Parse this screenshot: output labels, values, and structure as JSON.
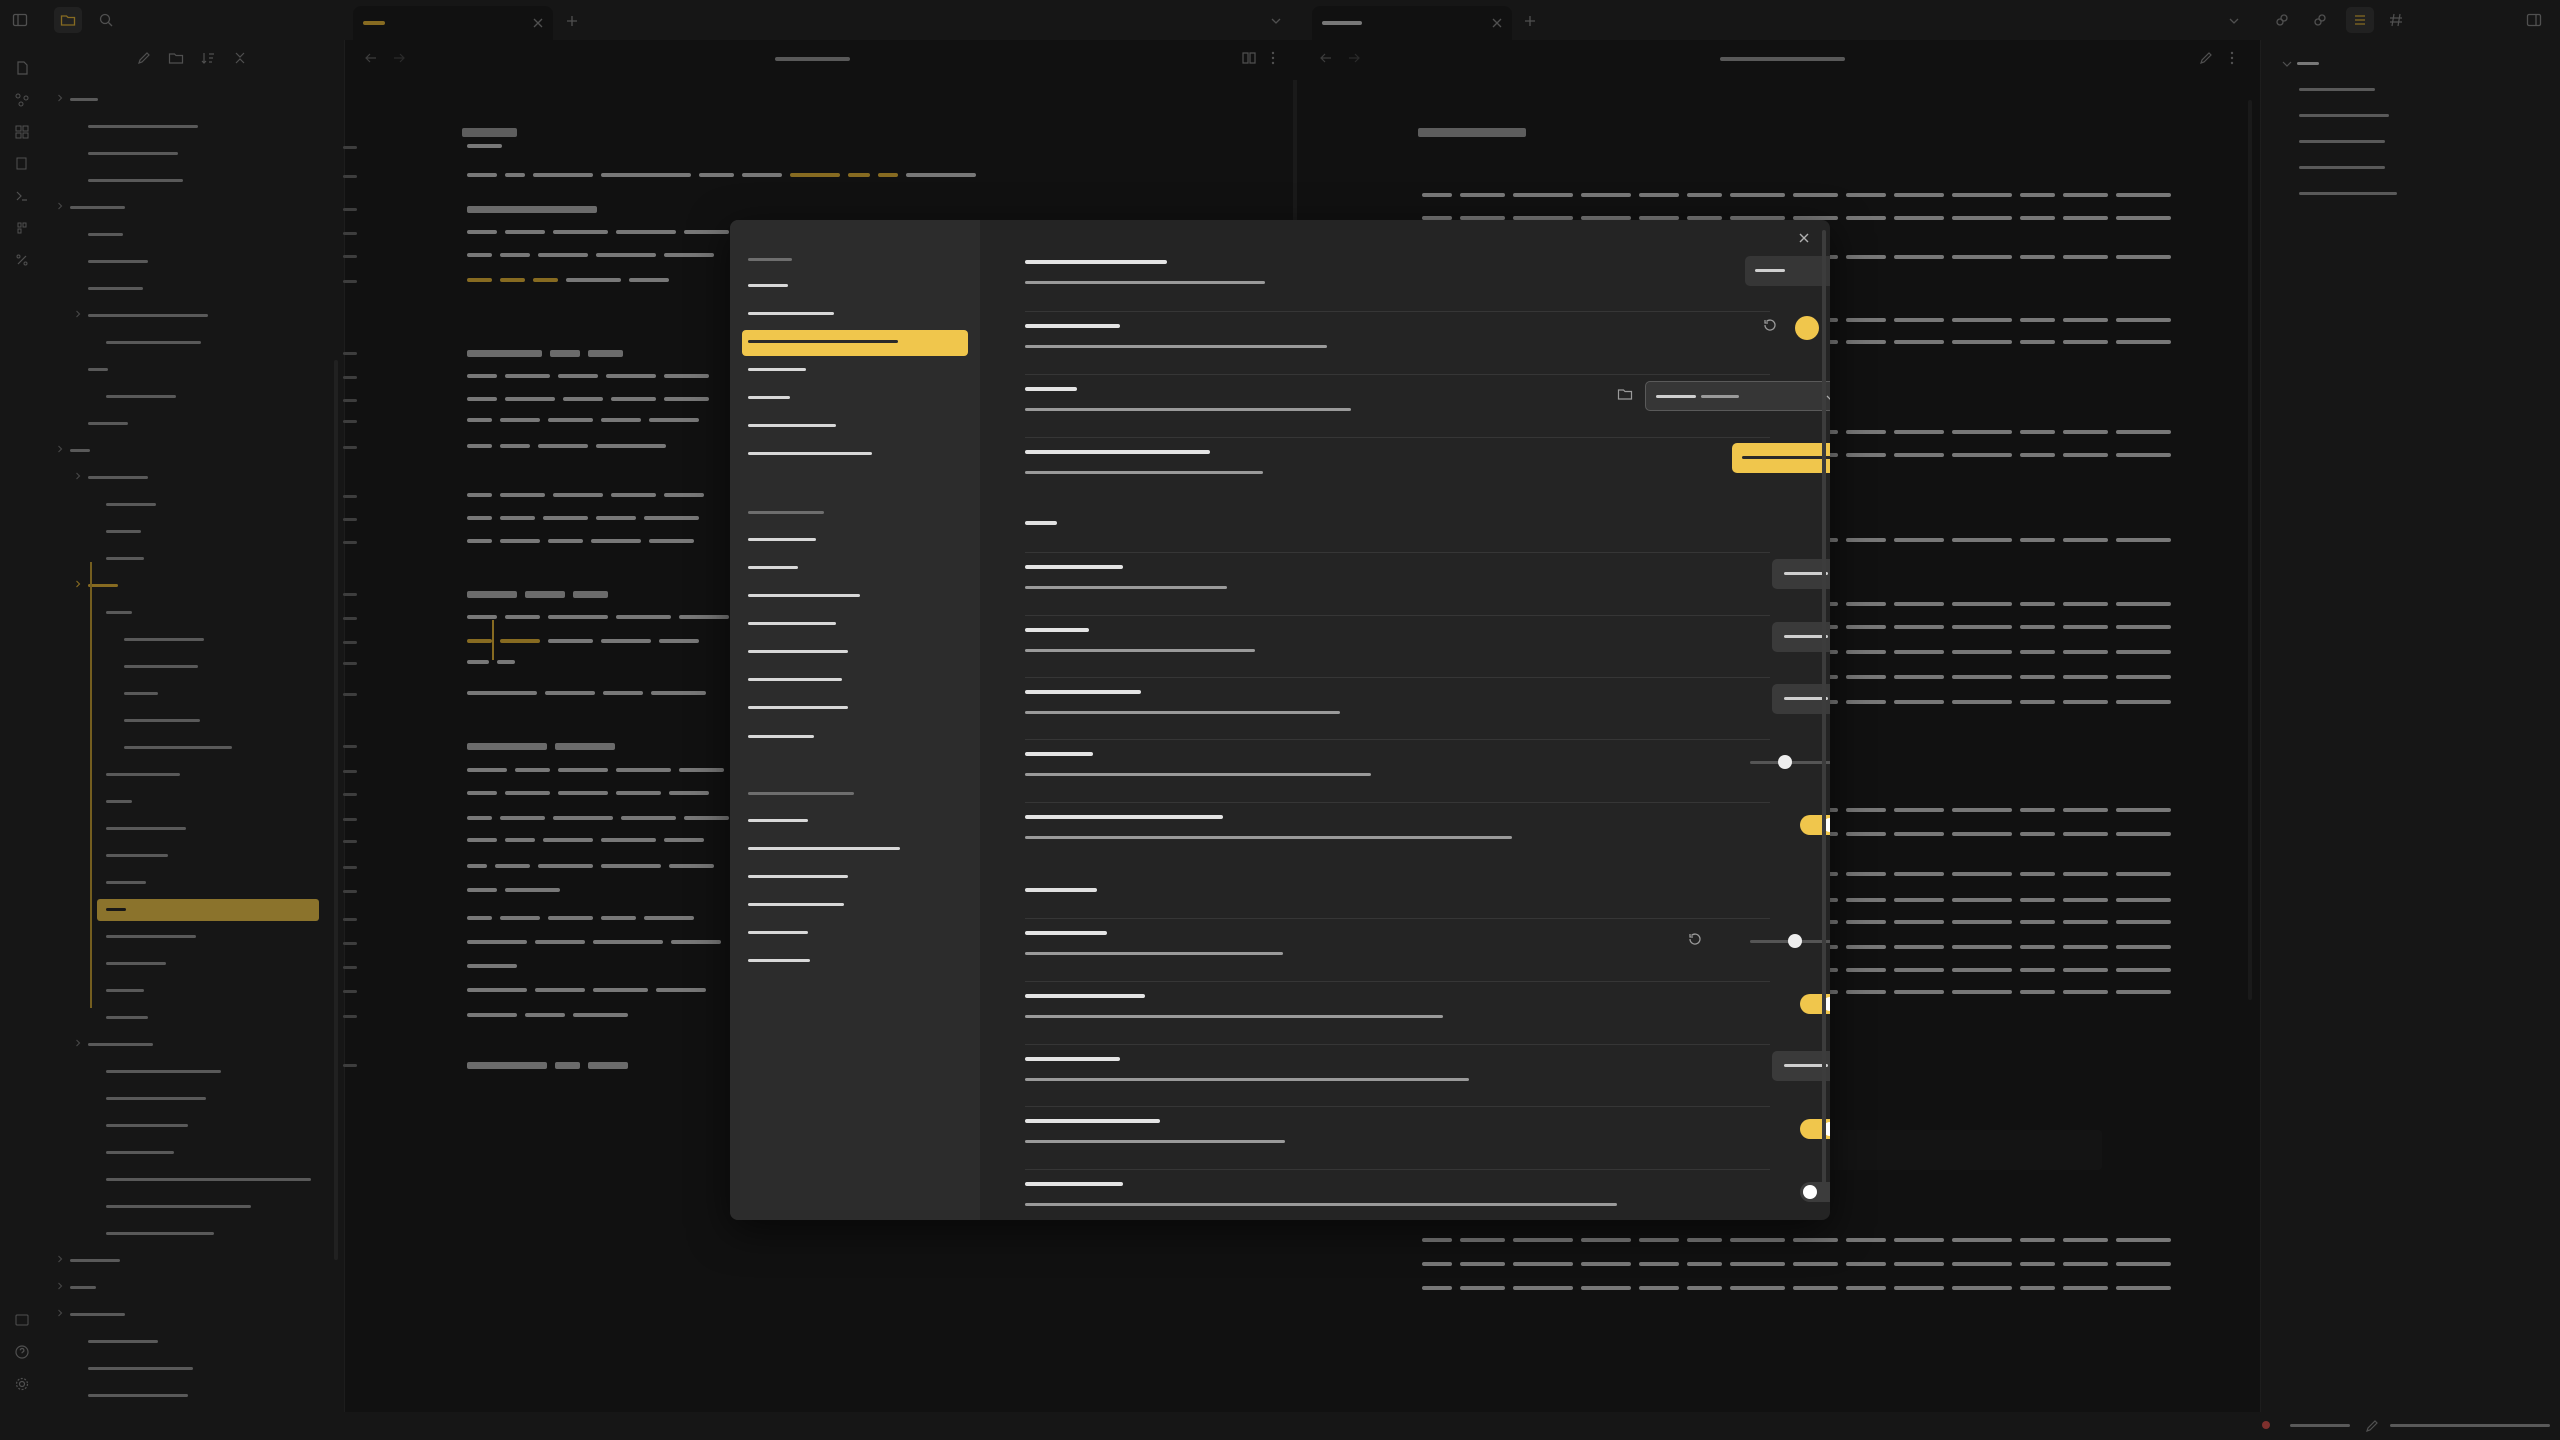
{
  "app": {
    "name": "",
    "mode": "dark"
  },
  "colors": {
    "accent": "#f0c64c",
    "background": "#1e1e1e",
    "panel": "#262626",
    "modal": "#242424"
  },
  "tabs": {
    "left": [
      {
        "label": ""
      }
    ],
    "right": [
      {
        "label": ""
      }
    ]
  },
  "icons": [
    "sidebar-toggle-icon",
    "folder-icon",
    "search-icon",
    "new-tab-icon",
    "close-icon",
    "chevron-down-icon",
    "back-icon",
    "forward-icon",
    "book-icon",
    "more-icon",
    "pencil-icon",
    "outline-icon",
    "tag-icon",
    "graph-icon",
    "settings-icon",
    "help-icon",
    "refresh-icon",
    "folder-open-icon"
  ],
  "settings_modal": {
    "title": "",
    "nav_groups": [
      {
        "heading": "",
        "items": [
          "",
          "",
          "",
          "",
          "",
          "",
          ""
        ],
        "active_index": 2
      },
      {
        "heading": "",
        "items": [
          "",
          "",
          "",
          "",
          "",
          "",
          "",
          ""
        ]
      },
      {
        "heading": "",
        "items": [
          "",
          "",
          "",
          "",
          "",
          ""
        ]
      }
    ],
    "sections": [
      {
        "heading": "",
        "rows": [
          {
            "name": "",
            "desc": "",
            "control": "dropdown",
            "value": ""
          },
          {
            "name": "",
            "desc": "",
            "control": "color",
            "value": "#f0c64c"
          },
          {
            "name": "",
            "desc": "",
            "control": "folder-select",
            "value": "",
            "button": ""
          },
          {
            "name": "",
            "desc": "",
            "control": "button-accent",
            "button": ""
          }
        ]
      },
      {
        "heading": "",
        "rows": [
          {
            "name": "",
            "desc": "",
            "control": "button",
            "button": ""
          },
          {
            "name": "",
            "desc": "",
            "control": "button",
            "button": ""
          },
          {
            "name": "",
            "desc": "",
            "control": "button",
            "button": ""
          },
          {
            "name": "",
            "desc": "",
            "control": "slider",
            "value": 0.35
          },
          {
            "name": "",
            "desc": "",
            "control": "toggle",
            "on": true
          }
        ]
      },
      {
        "heading": "",
        "rows": [
          {
            "name": "",
            "desc": "",
            "control": "slider-reset",
            "value": 0.45
          },
          {
            "name": "",
            "desc": "",
            "control": "toggle",
            "on": true
          },
          {
            "name": "",
            "desc": "",
            "control": "button",
            "button": ""
          },
          {
            "name": "",
            "desc": "",
            "control": "toggle",
            "on": true
          },
          {
            "name": "",
            "desc": "",
            "control": "toggle",
            "on": false
          }
        ]
      }
    ]
  }
}
